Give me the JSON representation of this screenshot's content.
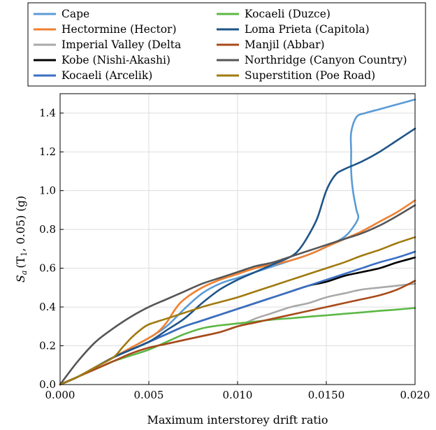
{
  "chart_data": {
    "type": "line",
    "xlabel": "Maximum interstorey drift ratio",
    "ylabel_main": "S",
    "ylabel_sub": "a",
    "ylabel_rest": "(T",
    "ylabel_sub2": "1",
    "ylabel_tail": ", 0.05) (g)",
    "xlim": [
      0,
      0.02
    ],
    "ylim": [
      0,
      1.5
    ],
    "xticks": [
      0,
      0.005,
      0.01,
      0.015,
      0.02
    ],
    "xtick_labels": [
      "0.000",
      "0.005",
      "0.010",
      "0.0150",
      "0.020"
    ],
    "yticks": [
      0,
      0.2,
      0.4,
      0.6,
      0.8,
      1.0,
      1.2,
      1.4
    ],
    "ytick_labels": [
      "0.0",
      "0.2",
      "0.4",
      "0.6",
      "0.8",
      "1.0",
      "1.2",
      "1.4"
    ],
    "grid": true,
    "legend_position": "top",
    "series": [
      {
        "name": "Cape",
        "color": "#5b9bd5",
        "points": [
          [
            0,
            0
          ],
          [
            0.001,
            0.04
          ],
          [
            0.002,
            0.09
          ],
          [
            0.003,
            0.14
          ],
          [
            0.004,
            0.19
          ],
          [
            0.005,
            0.24
          ],
          [
            0.006,
            0.3
          ],
          [
            0.007,
            0.39
          ],
          [
            0.008,
            0.47
          ],
          [
            0.009,
            0.52
          ],
          [
            0.01,
            0.55
          ],
          [
            0.011,
            0.58
          ],
          [
            0.012,
            0.61
          ],
          [
            0.013,
            0.64
          ],
          [
            0.014,
            0.67
          ],
          [
            0.015,
            0.71
          ],
          [
            0.016,
            0.76
          ],
          [
            0.0165,
            0.81
          ],
          [
            0.0168,
            0.86
          ],
          [
            0.0167,
            0.9
          ],
          [
            0.0165,
            1.0
          ],
          [
            0.0164,
            1.1
          ],
          [
            0.0164,
            1.2
          ],
          [
            0.0164,
            1.3
          ],
          [
            0.0167,
            1.38
          ],
          [
            0.0172,
            1.4
          ],
          [
            0.018,
            1.42
          ],
          [
            0.019,
            1.445
          ],
          [
            0.02,
            1.47
          ]
        ]
      },
      {
        "name": "Hectormine (Hector)",
        "color": "#f08030",
        "points": [
          [
            0,
            0
          ],
          [
            0.001,
            0.04
          ],
          [
            0.002,
            0.09
          ],
          [
            0.003,
            0.14
          ],
          [
            0.004,
            0.19
          ],
          [
            0.005,
            0.24
          ],
          [
            0.0055,
            0.27
          ],
          [
            0.006,
            0.32
          ],
          [
            0.0065,
            0.39
          ],
          [
            0.007,
            0.44
          ],
          [
            0.008,
            0.5
          ],
          [
            0.009,
            0.54
          ],
          [
            0.01,
            0.57
          ],
          [
            0.011,
            0.6
          ],
          [
            0.012,
            0.62
          ],
          [
            0.013,
            0.64
          ],
          [
            0.014,
            0.67
          ],
          [
            0.015,
            0.71
          ],
          [
            0.016,
            0.75
          ],
          [
            0.017,
            0.79
          ],
          [
            0.018,
            0.84
          ],
          [
            0.019,
            0.89
          ],
          [
            0.02,
            0.95
          ]
        ]
      },
      {
        "name": "Imperial Valley (Delta",
        "color": "#a9a9a9",
        "points": [
          [
            0,
            0
          ],
          [
            0.001,
            0.04
          ],
          [
            0.002,
            0.08
          ],
          [
            0.003,
            0.12
          ],
          [
            0.004,
            0.16
          ],
          [
            0.005,
            0.19
          ],
          [
            0.006,
            0.21
          ],
          [
            0.007,
            0.23
          ],
          [
            0.008,
            0.25
          ],
          [
            0.009,
            0.27
          ],
          [
            0.01,
            0.3
          ],
          [
            0.011,
            0.34
          ],
          [
            0.012,
            0.37
          ],
          [
            0.013,
            0.4
          ],
          [
            0.014,
            0.42
          ],
          [
            0.015,
            0.45
          ],
          [
            0.016,
            0.47
          ],
          [
            0.017,
            0.49
          ],
          [
            0.018,
            0.5
          ],
          [
            0.019,
            0.51
          ],
          [
            0.02,
            0.52
          ]
        ]
      },
      {
        "name": "Kobe (Nishi-Akashi)",
        "color": "#000000",
        "points": [
          [
            0,
            0
          ],
          [
            0.001,
            0.04
          ],
          [
            0.002,
            0.09
          ],
          [
            0.003,
            0.14
          ],
          [
            0.004,
            0.18
          ],
          [
            0.005,
            0.22
          ],
          [
            0.006,
            0.26
          ],
          [
            0.007,
            0.3
          ],
          [
            0.008,
            0.33
          ],
          [
            0.009,
            0.36
          ],
          [
            0.01,
            0.39
          ],
          [
            0.011,
            0.42
          ],
          [
            0.012,
            0.45
          ],
          [
            0.013,
            0.48
          ],
          [
            0.014,
            0.51
          ],
          [
            0.015,
            0.53
          ],
          [
            0.016,
            0.56
          ],
          [
            0.017,
            0.58
          ],
          [
            0.018,
            0.6
          ],
          [
            0.019,
            0.63
          ],
          [
            0.02,
            0.655
          ]
        ]
      },
      {
        "name": "Kocaeli (Arcelik)",
        "color": "#3a6fc4",
        "points": [
          [
            0,
            0
          ],
          [
            0.001,
            0.04
          ],
          [
            0.002,
            0.09
          ],
          [
            0.003,
            0.14
          ],
          [
            0.004,
            0.18
          ],
          [
            0.005,
            0.22
          ],
          [
            0.006,
            0.26
          ],
          [
            0.007,
            0.3
          ],
          [
            0.008,
            0.33
          ],
          [
            0.009,
            0.36
          ],
          [
            0.01,
            0.39
          ],
          [
            0.011,
            0.42
          ],
          [
            0.012,
            0.45
          ],
          [
            0.013,
            0.48
          ],
          [
            0.014,
            0.51
          ],
          [
            0.015,
            0.54
          ],
          [
            0.016,
            0.57
          ],
          [
            0.017,
            0.6
          ],
          [
            0.018,
            0.63
          ],
          [
            0.019,
            0.655
          ],
          [
            0.02,
            0.685
          ]
        ]
      },
      {
        "name": "Kocaeli (Duzce)",
        "color": "#5cb845",
        "points": [
          [
            0,
            0
          ],
          [
            0.001,
            0.04
          ],
          [
            0.002,
            0.08
          ],
          [
            0.003,
            0.12
          ],
          [
            0.004,
            0.15
          ],
          [
            0.005,
            0.18
          ],
          [
            0.006,
            0.22
          ],
          [
            0.007,
            0.26
          ],
          [
            0.008,
            0.29
          ],
          [
            0.009,
            0.305
          ],
          [
            0.01,
            0.315
          ],
          [
            0.011,
            0.325
          ],
          [
            0.012,
            0.335
          ],
          [
            0.013,
            0.342
          ],
          [
            0.014,
            0.35
          ],
          [
            0.015,
            0.357
          ],
          [
            0.016,
            0.365
          ],
          [
            0.017,
            0.372
          ],
          [
            0.018,
            0.38
          ],
          [
            0.019,
            0.387
          ],
          [
            0.02,
            0.395
          ]
        ]
      },
      {
        "name": "Loma Prieta (Capitola)",
        "color": "#1f5488",
        "points": [
          [
            0,
            0
          ],
          [
            0.001,
            0.04
          ],
          [
            0.002,
            0.09
          ],
          [
            0.003,
            0.14
          ],
          [
            0.004,
            0.18
          ],
          [
            0.005,
            0.22
          ],
          [
            0.006,
            0.28
          ],
          [
            0.007,
            0.34
          ],
          [
            0.008,
            0.42
          ],
          [
            0.009,
            0.49
          ],
          [
            0.01,
            0.54
          ],
          [
            0.011,
            0.58
          ],
          [
            0.012,
            0.62
          ],
          [
            0.013,
            0.66
          ],
          [
            0.0135,
            0.7
          ],
          [
            0.014,
            0.77
          ],
          [
            0.0145,
            0.86
          ],
          [
            0.015,
            1.0
          ],
          [
            0.0155,
            1.08
          ],
          [
            0.016,
            1.11
          ],
          [
            0.017,
            1.15
          ],
          [
            0.018,
            1.2
          ],
          [
            0.019,
            1.26
          ],
          [
            0.02,
            1.32
          ]
        ]
      },
      {
        "name": "Manjil (Abbar)",
        "color": "#a84a1a",
        "points": [
          [
            0,
            0
          ],
          [
            0.001,
            0.04
          ],
          [
            0.002,
            0.08
          ],
          [
            0.003,
            0.12
          ],
          [
            0.004,
            0.16
          ],
          [
            0.005,
            0.19
          ],
          [
            0.006,
            0.21
          ],
          [
            0.007,
            0.23
          ],
          [
            0.008,
            0.25
          ],
          [
            0.009,
            0.27
          ],
          [
            0.01,
            0.3
          ],
          [
            0.011,
            0.32
          ],
          [
            0.012,
            0.34
          ],
          [
            0.013,
            0.36
          ],
          [
            0.014,
            0.38
          ],
          [
            0.015,
            0.4
          ],
          [
            0.016,
            0.42
          ],
          [
            0.017,
            0.44
          ],
          [
            0.018,
            0.46
          ],
          [
            0.019,
            0.49
          ],
          [
            0.02,
            0.535
          ]
        ]
      },
      {
        "name": "Northridge (Canyon Country)",
        "color": "#555555",
        "points": [
          [
            0,
            0
          ],
          [
            0.001,
            0.12
          ],
          [
            0.002,
            0.22
          ],
          [
            0.003,
            0.29
          ],
          [
            0.004,
            0.35
          ],
          [
            0.005,
            0.4
          ],
          [
            0.006,
            0.44
          ],
          [
            0.007,
            0.48
          ],
          [
            0.008,
            0.52
          ],
          [
            0.009,
            0.55
          ],
          [
            0.01,
            0.58
          ],
          [
            0.011,
            0.61
          ],
          [
            0.012,
            0.63
          ],
          [
            0.013,
            0.66
          ],
          [
            0.014,
            0.69
          ],
          [
            0.015,
            0.72
          ],
          [
            0.016,
            0.75
          ],
          [
            0.017,
            0.78
          ],
          [
            0.018,
            0.82
          ],
          [
            0.019,
            0.87
          ],
          [
            0.02,
            0.925
          ]
        ]
      },
      {
        "name": "Superstition (Poe Road)",
        "color": "#a07a10",
        "points": [
          [
            0,
            0
          ],
          [
            0.001,
            0.04
          ],
          [
            0.002,
            0.09
          ],
          [
            0.003,
            0.14
          ],
          [
            0.0035,
            0.19
          ],
          [
            0.004,
            0.24
          ],
          [
            0.0045,
            0.28
          ],
          [
            0.005,
            0.31
          ],
          [
            0.006,
            0.34
          ],
          [
            0.007,
            0.37
          ],
          [
            0.008,
            0.4
          ],
          [
            0.009,
            0.425
          ],
          [
            0.01,
            0.45
          ],
          [
            0.011,
            0.48
          ],
          [
            0.012,
            0.51
          ],
          [
            0.013,
            0.54
          ],
          [
            0.014,
            0.57
          ],
          [
            0.015,
            0.6
          ],
          [
            0.016,
            0.63
          ],
          [
            0.017,
            0.665
          ],
          [
            0.018,
            0.695
          ],
          [
            0.019,
            0.73
          ],
          [
            0.02,
            0.76
          ]
        ]
      }
    ]
  }
}
